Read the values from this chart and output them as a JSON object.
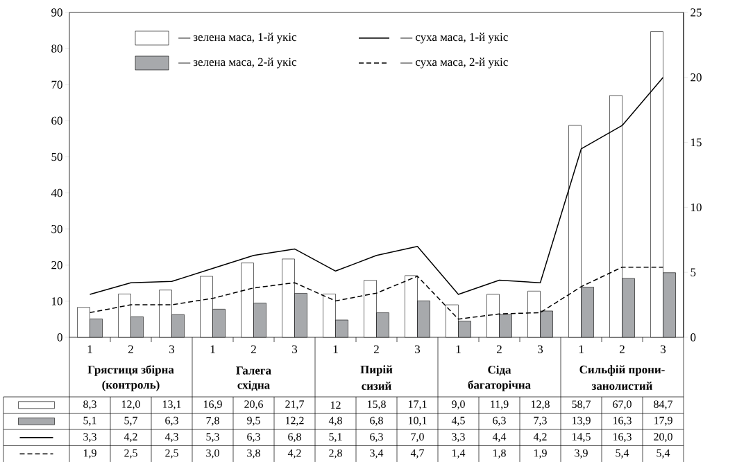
{
  "chart_data": {
    "type": "bar",
    "categories": [
      "1",
      "2",
      "3",
      "1",
      "2",
      "3",
      "1",
      "2",
      "3",
      "1",
      "2",
      "3",
      "1",
      "2",
      "3"
    ],
    "annotations": [
      "Грястиця збірна",
      "(контроль)",
      "Галега",
      "східна",
      "Пирій",
      "сизий",
      "Сіда",
      "багаторічна",
      "Сильфій прони-",
      "занолистий"
    ],
    "series": [
      {
        "name": "— зелена маса, 1-й укіс",
        "color": "#ffffff",
        "values": [
          8.3,
          12.0,
          13.1,
          16.9,
          20.6,
          21.7,
          12,
          15.8,
          17.1,
          9.0,
          11.9,
          12.8,
          58.7,
          67.0,
          84.7
        ],
        "value_labels": [
          "8,3",
          "12,0",
          "13,1",
          "16,9",
          "20,6",
          "21,7",
          "12",
          "15,8",
          "17,1",
          "9,0",
          "11,9",
          "12,8",
          "58,7",
          "67,0",
          "84,7"
        ]
      },
      {
        "name": "— зелена маса, 2-й укіс",
        "color": "#a7a9ac",
        "values": [
          5.1,
          5.7,
          6.3,
          7.8,
          9.5,
          12.2,
          4.8,
          6.8,
          10.1,
          4.5,
          6.3,
          7.3,
          13.9,
          16.3,
          17.9
        ],
        "value_labels": [
          "5,1",
          "5,7",
          "6,3",
          "7,8",
          "9,5",
          "12,2",
          "4,8",
          "6,8",
          "10,1",
          "4,5",
          "6,3",
          "7,3",
          "13,9",
          "16,3",
          "17,9"
        ]
      },
      {
        "name": "— суха маса, 1-й укіс",
        "type": "line",
        "axis": "y2",
        "line_style": "solid",
        "color": "#000000",
        "values": [
          3.3,
          4.2,
          4.3,
          5.3,
          6.3,
          6.8,
          5.1,
          6.3,
          7.0,
          3.3,
          4.4,
          4.2,
          14.5,
          16.3,
          20.0
        ],
        "value_labels": [
          "3,3",
          "4,2",
          "4,3",
          "5,3",
          "6,3",
          "6,8",
          "5,1",
          "6,3",
          "7,0",
          "3,3",
          "4,4",
          "4,2",
          "14,5",
          "16,3",
          "20,0"
        ]
      },
      {
        "name": "— суха маса, 2-й укіс",
        "type": "line",
        "axis": "y2",
        "line_style": "dashed",
        "color": "#000000",
        "values": [
          1.9,
          2.5,
          2.5,
          3.0,
          3.8,
          4.2,
          2.8,
          3.4,
          4.7,
          1.4,
          1.8,
          1.9,
          3.9,
          5.4,
          5.4
        ],
        "value_labels": [
          "1,9",
          "2,5",
          "2,5",
          "3,0",
          "3,8",
          "4,2",
          "2,8",
          "3,4",
          "4,7",
          "1,4",
          "1,8",
          "1,9",
          "3,9",
          "5,4",
          "5,4"
        ]
      }
    ],
    "ylim": [
      0,
      90
    ],
    "yticks": [
      0,
      10,
      20,
      30,
      40,
      50,
      60,
      70,
      80,
      90
    ],
    "y2lim": [
      0,
      25
    ],
    "y2ticks": [
      0,
      5,
      10,
      15,
      20,
      25
    ],
    "legend": "top left"
  }
}
